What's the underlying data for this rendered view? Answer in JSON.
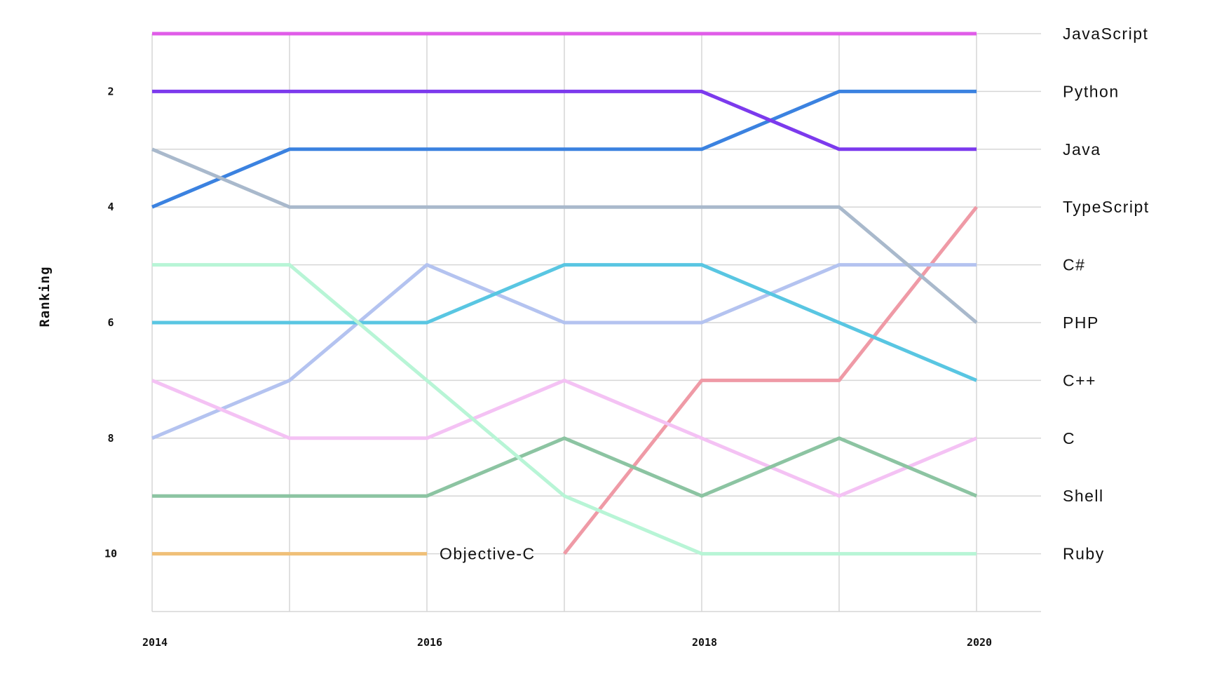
{
  "chart_data": {
    "type": "line",
    "ylabel": "Ranking",
    "xlabel": "",
    "x": [
      2014,
      2015,
      2016,
      2017,
      2018,
      2019,
      2020
    ],
    "x_tick_labels": [
      "2014",
      "2016",
      "2018",
      "2020"
    ],
    "y_tick_labels": [
      "2",
      "4",
      "6",
      "8",
      "10"
    ],
    "xlim": [
      2014,
      2020.47
    ],
    "ylim": [
      11,
      1
    ],
    "y_inverted": true,
    "grid": true,
    "series": [
      {
        "name": "JavaScript",
        "color": "#e05ce8",
        "values": [
          1,
          1,
          1,
          1,
          1,
          1,
          1
        ]
      },
      {
        "name": "Python",
        "color": "#3b82e0",
        "values": [
          4,
          3,
          3,
          3,
          3,
          2,
          2
        ]
      },
      {
        "name": "Java",
        "color": "#7c3aed",
        "values": [
          2,
          2,
          2,
          2,
          2,
          3,
          3
        ]
      },
      {
        "name": "TypeScript",
        "color": "#ef9aa6",
        "values": [
          null,
          null,
          null,
          10,
          7,
          7,
          4
        ]
      },
      {
        "name": "C#",
        "color": "#b4c3f0",
        "values": [
          8,
          7,
          5,
          6,
          6,
          5,
          5
        ]
      },
      {
        "name": "PHP",
        "color": "#a9b9cc",
        "values": [
          3,
          4,
          4,
          4,
          4,
          4,
          6
        ]
      },
      {
        "name": "C++",
        "color": "#59c6e2",
        "values": [
          6,
          6,
          6,
          5,
          5,
          6,
          7
        ]
      },
      {
        "name": "C",
        "color": "#f4c2f4",
        "values": [
          7,
          8,
          8,
          7,
          8,
          9,
          8
        ]
      },
      {
        "name": "Shell",
        "color": "#8cc4a2",
        "values": [
          9,
          9,
          9,
          8,
          9,
          8,
          9
        ]
      },
      {
        "name": "Ruby",
        "color": "#b8f5d6",
        "values": [
          5,
          5,
          7,
          9,
          10,
          10,
          10
        ]
      },
      {
        "name": "Objective-C",
        "color": "#f0c078",
        "values": [
          10,
          10,
          10,
          null,
          null,
          null,
          null
        ]
      }
    ]
  }
}
